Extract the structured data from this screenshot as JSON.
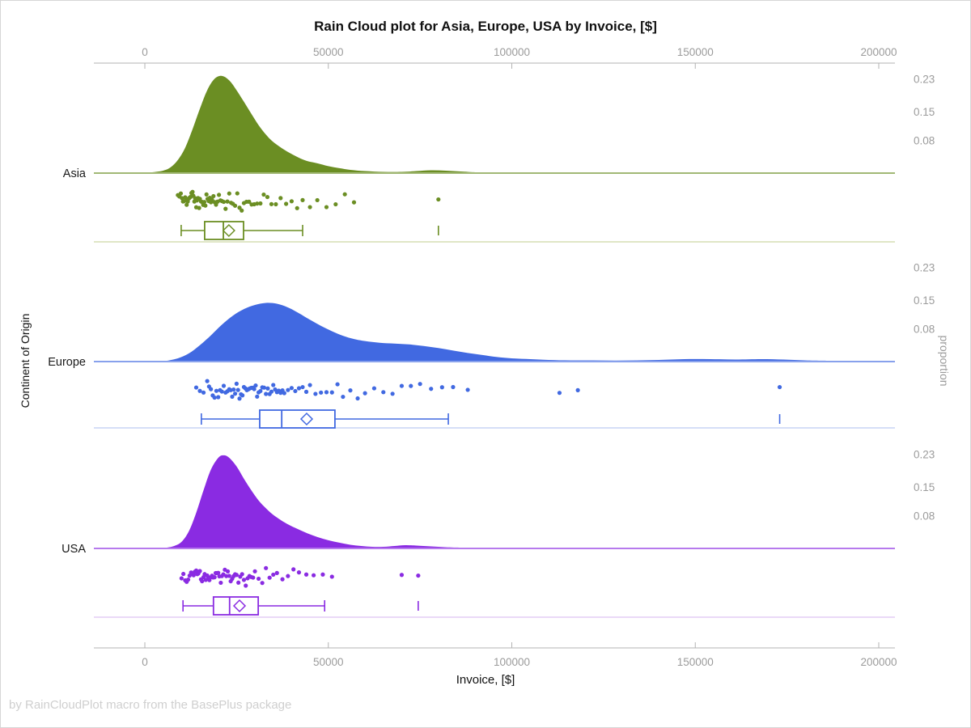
{
  "chart_data": {
    "type": "raincloud",
    "title": "Rain Cloud plot for Asia, Europe, USA by Invoice, [$]",
    "footer": "by RainCloudPlot macro from the BasePlus package",
    "x_axis": {
      "label": "Invoice, [$]",
      "min": 0,
      "max": 200000,
      "ticks": [
        0,
        50000,
        100000,
        150000,
        200000
      ],
      "tick_labels": [
        "0",
        "50000",
        "100000",
        "150000",
        "200000"
      ]
    },
    "y_axis": {
      "label": "Continent of Origin",
      "categories": [
        "Asia",
        "Europe",
        "USA"
      ]
    },
    "right_axis": {
      "label": "proportion",
      "tick_values": [
        0.23,
        0.15,
        0.08
      ],
      "tick_labels": [
        "0.23",
        "0.15",
        "0.08"
      ]
    },
    "groups": [
      {
        "label": "Asia",
        "color": "#6B8E23",
        "light_color": "#cdd8a4",
        "density": [
          [
            2000,
            0
          ],
          [
            5000,
            0.004
          ],
          [
            7000,
            0.012
          ],
          [
            9000,
            0.03
          ],
          [
            11000,
            0.06
          ],
          [
            13000,
            0.105
          ],
          [
            15000,
            0.155
          ],
          [
            17000,
            0.2
          ],
          [
            19000,
            0.228
          ],
          [
            21000,
            0.235
          ],
          [
            23000,
            0.224
          ],
          [
            25000,
            0.2
          ],
          [
            27000,
            0.172
          ],
          [
            29000,
            0.143
          ],
          [
            31000,
            0.115
          ],
          [
            33000,
            0.092
          ],
          [
            35000,
            0.074
          ],
          [
            38000,
            0.055
          ],
          [
            41000,
            0.04
          ],
          [
            44000,
            0.028
          ],
          [
            47000,
            0.022
          ],
          [
            50000,
            0.015
          ],
          [
            53000,
            0.01
          ],
          [
            56000,
            0.006
          ],
          [
            60000,
            0.003
          ],
          [
            65000,
            0.001
          ],
          [
            70000,
            0.001
          ],
          [
            74000,
            0.003
          ],
          [
            78000,
            0.005
          ],
          [
            82000,
            0.004
          ],
          [
            86000,
            0.002
          ],
          [
            90000,
            0
          ]
        ],
        "box": {
          "whisker_low": 9900,
          "q1": 16300,
          "median": 21400,
          "mean": 22900,
          "q3": 26900,
          "whisker_high": 43000,
          "outliers": [
            80000
          ]
        },
        "points": [
          9000,
          9400,
          9800,
          10100,
          10400,
          10700,
          11000,
          11200,
          11400,
          11700,
          12000,
          12200,
          12500,
          12700,
          13000,
          13200,
          13500,
          13700,
          14000,
          14200,
          14500,
          14800,
          15000,
          15300,
          15600,
          15900,
          16200,
          16500,
          16800,
          17100,
          17400,
          17700,
          18000,
          18300,
          18700,
          19000,
          19400,
          19800,
          20200,
          20600,
          21000,
          21500,
          22000,
          22500,
          23000,
          23500,
          24000,
          24600,
          25200,
          25800,
          26400,
          27000,
          27700,
          28400,
          29100,
          29800,
          30600,
          31500,
          32400,
          33400,
          34500,
          35700,
          37000,
          38500,
          40000,
          41500,
          43000,
          45000,
          47000,
          49500,
          52000,
          54500,
          57000,
          80000
        ]
      },
      {
        "label": "Europe",
        "color": "#4169E1",
        "light_color": "#bccbf2",
        "density": [
          [
            6000,
            0
          ],
          [
            9000,
            0.006
          ],
          [
            12000,
            0.018
          ],
          [
            15000,
            0.038
          ],
          [
            18000,
            0.062
          ],
          [
            21000,
            0.088
          ],
          [
            24000,
            0.11
          ],
          [
            27000,
            0.126
          ],
          [
            30000,
            0.136
          ],
          [
            33000,
            0.141
          ],
          [
            36000,
            0.139
          ],
          [
            39000,
            0.13
          ],
          [
            42000,
            0.116
          ],
          [
            45000,
            0.1
          ],
          [
            48000,
            0.085
          ],
          [
            51000,
            0.072
          ],
          [
            54000,
            0.061
          ],
          [
            57000,
            0.053
          ],
          [
            60000,
            0.048
          ],
          [
            64000,
            0.044
          ],
          [
            68000,
            0.042
          ],
          [
            72000,
            0.04
          ],
          [
            76000,
            0.036
          ],
          [
            80000,
            0.031
          ],
          [
            84000,
            0.025
          ],
          [
            88000,
            0.019
          ],
          [
            92000,
            0.014
          ],
          [
            96000,
            0.009
          ],
          [
            100000,
            0.006
          ],
          [
            105000,
            0.004
          ],
          [
            110000,
            0.002
          ],
          [
            116000,
            0.001
          ],
          [
            122000,
            0.001
          ],
          [
            128000,
            0.0005
          ],
          [
            134000,
            0.001
          ],
          [
            140000,
            0.002
          ],
          [
            147000,
            0.004
          ],
          [
            154000,
            0.004
          ],
          [
            161000,
            0.003
          ],
          [
            168000,
            0.004
          ],
          [
            174000,
            0.003
          ],
          [
            180000,
            0.001
          ],
          [
            186000,
            0
          ]
        ],
        "box": {
          "whisker_low": 15400,
          "q1": 31300,
          "median": 37300,
          "mean": 44100,
          "q3": 51800,
          "whisker_high": 82700,
          "outliers": [
            173000
          ]
        },
        "points": [
          14000,
          15000,
          16000,
          17000,
          17500,
          18000,
          18500,
          19000,
          19500,
          20000,
          20500,
          21000,
          21500,
          22000,
          22500,
          23000,
          23400,
          23800,
          24200,
          24600,
          25000,
          25400,
          25800,
          26200,
          26600,
          27000,
          27400,
          27800,
          28200,
          28600,
          29000,
          29400,
          29800,
          30200,
          30600,
          31000,
          31500,
          32000,
          32500,
          33000,
          33500,
          34000,
          34500,
          35000,
          35500,
          36000,
          36500,
          37000,
          37500,
          38000,
          39000,
          40000,
          41000,
          42000,
          43000,
          44000,
          45000,
          46500,
          48000,
          49500,
          51000,
          52500,
          54000,
          56000,
          58000,
          60000,
          62500,
          65000,
          67500,
          70000,
          72500,
          75000,
          78000,
          81000,
          84000,
          88000,
          113000,
          118000,
          173000
        ]
      },
      {
        "label": "USA",
        "color": "#8A2BE2",
        "light_color": "#ddc2f2",
        "density": [
          [
            6000,
            0
          ],
          [
            8000,
            0.004
          ],
          [
            10000,
            0.014
          ],
          [
            12000,
            0.04
          ],
          [
            14000,
            0.085
          ],
          [
            16000,
            0.14
          ],
          [
            18000,
            0.19
          ],
          [
            20000,
            0.219
          ],
          [
            21500,
            0.225
          ],
          [
            23000,
            0.219
          ],
          [
            25000,
            0.198
          ],
          [
            27000,
            0.168
          ],
          [
            29000,
            0.14
          ],
          [
            31000,
            0.115
          ],
          [
            33000,
            0.096
          ],
          [
            35000,
            0.08
          ],
          [
            38000,
            0.062
          ],
          [
            41000,
            0.048
          ],
          [
            44000,
            0.036
          ],
          [
            47000,
            0.026
          ],
          [
            50000,
            0.018
          ],
          [
            53000,
            0.012
          ],
          [
            56000,
            0.007
          ],
          [
            59000,
            0.004
          ],
          [
            62000,
            0.002
          ],
          [
            65000,
            0.002
          ],
          [
            68000,
            0.004
          ],
          [
            71000,
            0.006
          ],
          [
            74000,
            0.005
          ],
          [
            78000,
            0.003
          ],
          [
            82000,
            0.001
          ],
          [
            86000,
            0
          ]
        ],
        "box": {
          "whisker_low": 10400,
          "q1": 18700,
          "median": 23100,
          "mean": 25800,
          "q3": 30900,
          "whisker_high": 49000,
          "outliers": [
            74500
          ]
        },
        "points": [
          10000,
          10500,
          11000,
          11400,
          11800,
          12200,
          12600,
          13000,
          13300,
          13600,
          14000,
          14300,
          14600,
          15000,
          15300,
          15600,
          16000,
          16300,
          16600,
          17000,
          17300,
          17600,
          18000,
          18300,
          18600,
          19000,
          19300,
          19600,
          20000,
          20300,
          20700,
          21000,
          21400,
          21800,
          22200,
          22600,
          23000,
          23400,
          23800,
          24200,
          24600,
          25000,
          25500,
          26000,
          26500,
          27000,
          27500,
          28000,
          28500,
          29000,
          29500,
          30000,
          31000,
          32000,
          33000,
          34000,
          35000,
          36000,
          37500,
          39000,
          40500,
          42000,
          44000,
          46000,
          48500,
          51000,
          70000,
          74500
        ]
      }
    ]
  }
}
